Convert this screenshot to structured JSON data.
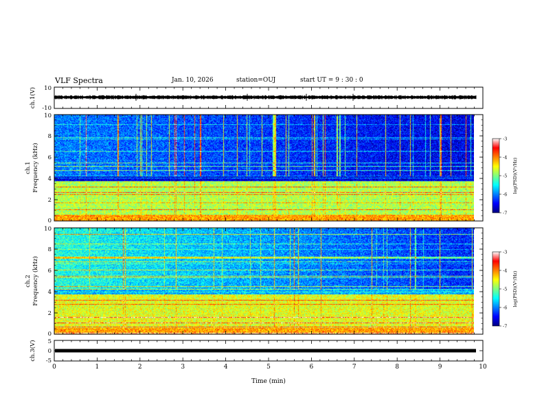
{
  "header": {
    "title": "VLF Spectra",
    "date": "Jan. 10, 2026",
    "station": "station=OUJ",
    "start": "start  UT =   9 : 30 : 0"
  },
  "chart_data": [
    {
      "type": "line",
      "ylabel": "ch.1(V)",
      "ylim": [
        -10,
        10
      ],
      "yticks": [
        "10",
        "-10"
      ],
      "level": 0.5,
      "xlim": [
        0,
        10
      ]
    },
    {
      "type": "heatmap",
      "ylabel": "ch.1\nFrequency (kHz)",
      "ylim": [
        0,
        10
      ],
      "yticks": [
        "0",
        "2",
        "4",
        "6",
        "8",
        "10"
      ],
      "xlim": [
        0,
        10
      ],
      "data_end": 9.8,
      "colorbar": {
        "label": "log(PSD)(V²/Hz)",
        "range": [
          -7,
          -3
        ],
        "ticks": [
          "-3",
          "-4",
          "-5",
          "-6",
          "-7"
        ]
      }
    },
    {
      "type": "heatmap",
      "ylabel": "ch.2\nFrequency (kHz)",
      "ylim": [
        0,
        10
      ],
      "yticks": [
        "0",
        "2",
        "4",
        "6",
        "8",
        "10"
      ],
      "xlim": [
        0,
        10
      ],
      "data_end": 9.8,
      "colorbar": {
        "label": "log(PSD)(V²/Hz)",
        "range": [
          -7,
          -3
        ],
        "ticks": [
          "-3",
          "-4",
          "-5",
          "-6",
          "-7"
        ]
      }
    },
    {
      "type": "line",
      "ylabel": "ch.3(V)",
      "ylim": [
        -5,
        5
      ],
      "yticks": [
        "5",
        "0",
        "-5"
      ],
      "level": 0.0,
      "xlim": [
        0,
        10
      ]
    }
  ],
  "xaxis": {
    "label": "Time (min)",
    "ticks": [
      "0",
      "1",
      "2",
      "3",
      "4",
      "5",
      "6",
      "7",
      "8",
      "9",
      "10"
    ]
  },
  "colors": {
    "colormap": [
      "#000080",
      "#0000ff",
      "#0080ff",
      "#00ffff",
      "#80ff80",
      "#ffff00",
      "#ff8000",
      "#ff0000",
      "#ffffff"
    ]
  }
}
